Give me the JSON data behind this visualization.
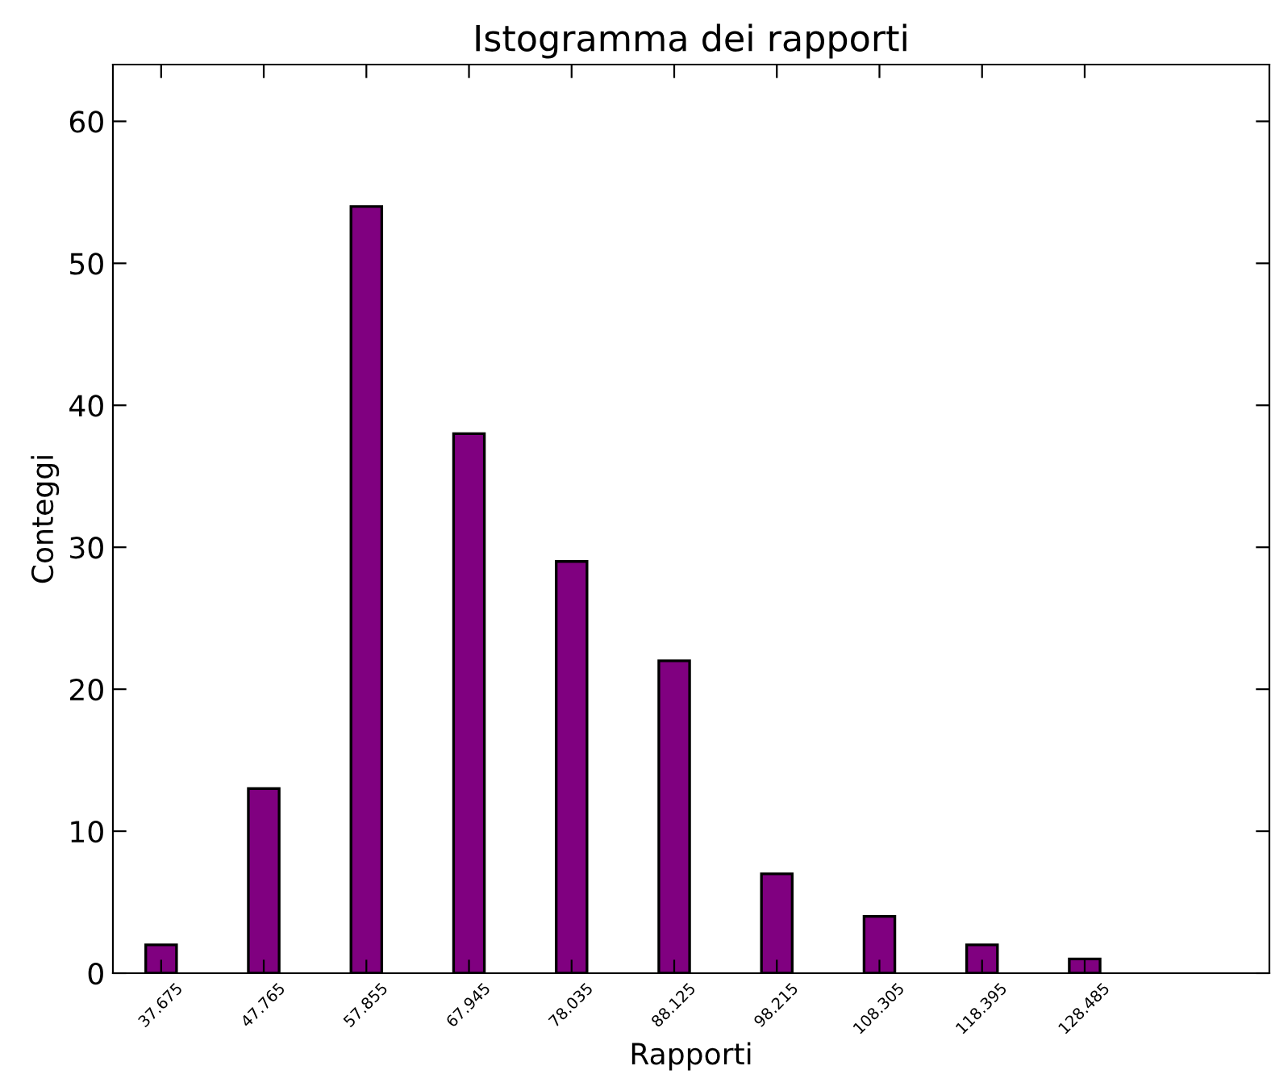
{
  "chart_data": {
    "type": "bar",
    "title": "Istogramma dei rapporti",
    "xlabel": "Rapporti",
    "ylabel": "Conteggi",
    "categories": [
      "37.675",
      "47.765",
      "57.855",
      "67.945",
      "78.035",
      "88.125",
      "98.215",
      "108.305",
      "118.395",
      "128.485"
    ],
    "values": [
      2,
      13,
      54,
      38,
      29,
      22,
      7,
      4,
      2,
      1
    ],
    "color": "#800080",
    "ylim": [
      0,
      64
    ],
    "yticks": [
      0,
      10,
      20,
      30,
      40,
      50,
      60
    ],
    "grid": false
  }
}
